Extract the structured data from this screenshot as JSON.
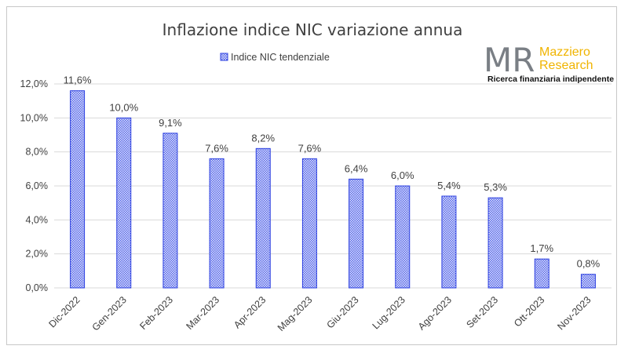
{
  "colors": {
    "bar_stroke": "#2b3fe0",
    "bar_fill_light": "#dfe3fb",
    "bar_pattern_dot": "#5a6aea",
    "grid": "#d9d9d9",
    "text": "#404040",
    "logo_accent": "#f0b400",
    "logo_gray": "#7a7f85"
  },
  "logo": {
    "mark": "MR",
    "name_line1": "Mazziero",
    "name_line2": "Research",
    "tagline": "Ricerca finanziaria indipendente"
  },
  "chart_data": {
    "type": "bar",
    "title": "Inflazione indice NIC variazione annua",
    "xlabel": "",
    "ylabel": "",
    "legend": {
      "position": "top-center",
      "label": "Indice NIC tendenziale"
    },
    "grid": true,
    "ylim": [
      0,
      12
    ],
    "yticks": [
      "0,0%",
      "2,0%",
      "4,0%",
      "6,0%",
      "8,0%",
      "10,0%",
      "12,0%"
    ],
    "ytick_values": [
      0,
      2,
      4,
      6,
      8,
      10,
      12
    ],
    "categories": [
      "Dic-2022",
      "Gen-2023",
      "Feb-2023",
      "Mar-2023",
      "Apr-2023",
      "Mag-2023",
      "Giu-2023",
      "Lug-2023",
      "Ago-2023",
      "Set-2023",
      "Ott-2023",
      "Nov-2023"
    ],
    "series": [
      {
        "name": "Indice NIC tendenziale",
        "values": [
          11.6,
          10.0,
          9.1,
          7.6,
          8.2,
          7.6,
          6.4,
          6.0,
          5.4,
          5.3,
          1.7,
          0.8
        ],
        "labels": [
          "11,6%",
          "10,0%",
          "9,1%",
          "7,6%",
          "8,2%",
          "7,6%",
          "6,4%",
          "6,0%",
          "5,4%",
          "5,3%",
          "1,7%",
          "0,8%"
        ]
      }
    ]
  }
}
